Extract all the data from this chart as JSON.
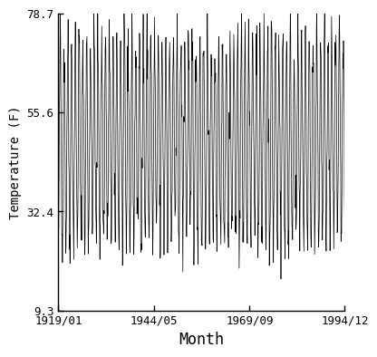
{
  "title": "",
  "xlabel": "Month",
  "ylabel": "Temperature (F)",
  "yticks": [
    9.3,
    32.4,
    55.6,
    78.7
  ],
  "xtick_labels": [
    "1919/01",
    "1944/05",
    "1969/09",
    "1994/12"
  ],
  "xtick_positions_months": [
    0,
    304,
    608,
    911
  ],
  "line_color": "#000000",
  "line_width": 0.5,
  "background_color": "#ffffff",
  "num_months": 912,
  "mean_temp": 49.0,
  "amplitude": 23.0,
  "noise_std": 4.5,
  "xlabel_fontsize": 12,
  "ylabel_fontsize": 10,
  "tick_fontsize": 9
}
